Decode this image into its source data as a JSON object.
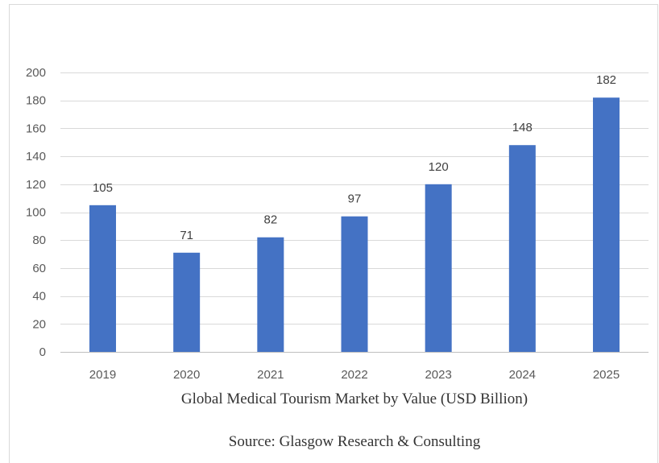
{
  "chart_data": {
    "type": "bar",
    "categories": [
      "2019",
      "2020",
      "2021",
      "2022",
      "2023",
      "2024",
      "2025"
    ],
    "values": [
      105,
      71,
      82,
      97,
      120,
      148,
      182
    ],
    "title": "Global Medical Tourism Market by Value (USD Billion)",
    "title_position": "bottom",
    "source": "Source: Glasgow Research & Consulting",
    "xlabel": "",
    "ylabel": "",
    "ylim": [
      0,
      200
    ],
    "yticks": [
      "0",
      "20",
      "40",
      "60",
      "80",
      "100",
      "120",
      "140",
      "160",
      "180",
      "200"
    ],
    "data_labels": true,
    "grid": true,
    "legend": "none",
    "colors": {
      "bar": "#4472C4",
      "grid": "#D9D9D9",
      "axis": "#BFBFBF",
      "tick_text": "#595959",
      "data_label_text": "#404040",
      "frame": "#D9D9D9"
    }
  }
}
